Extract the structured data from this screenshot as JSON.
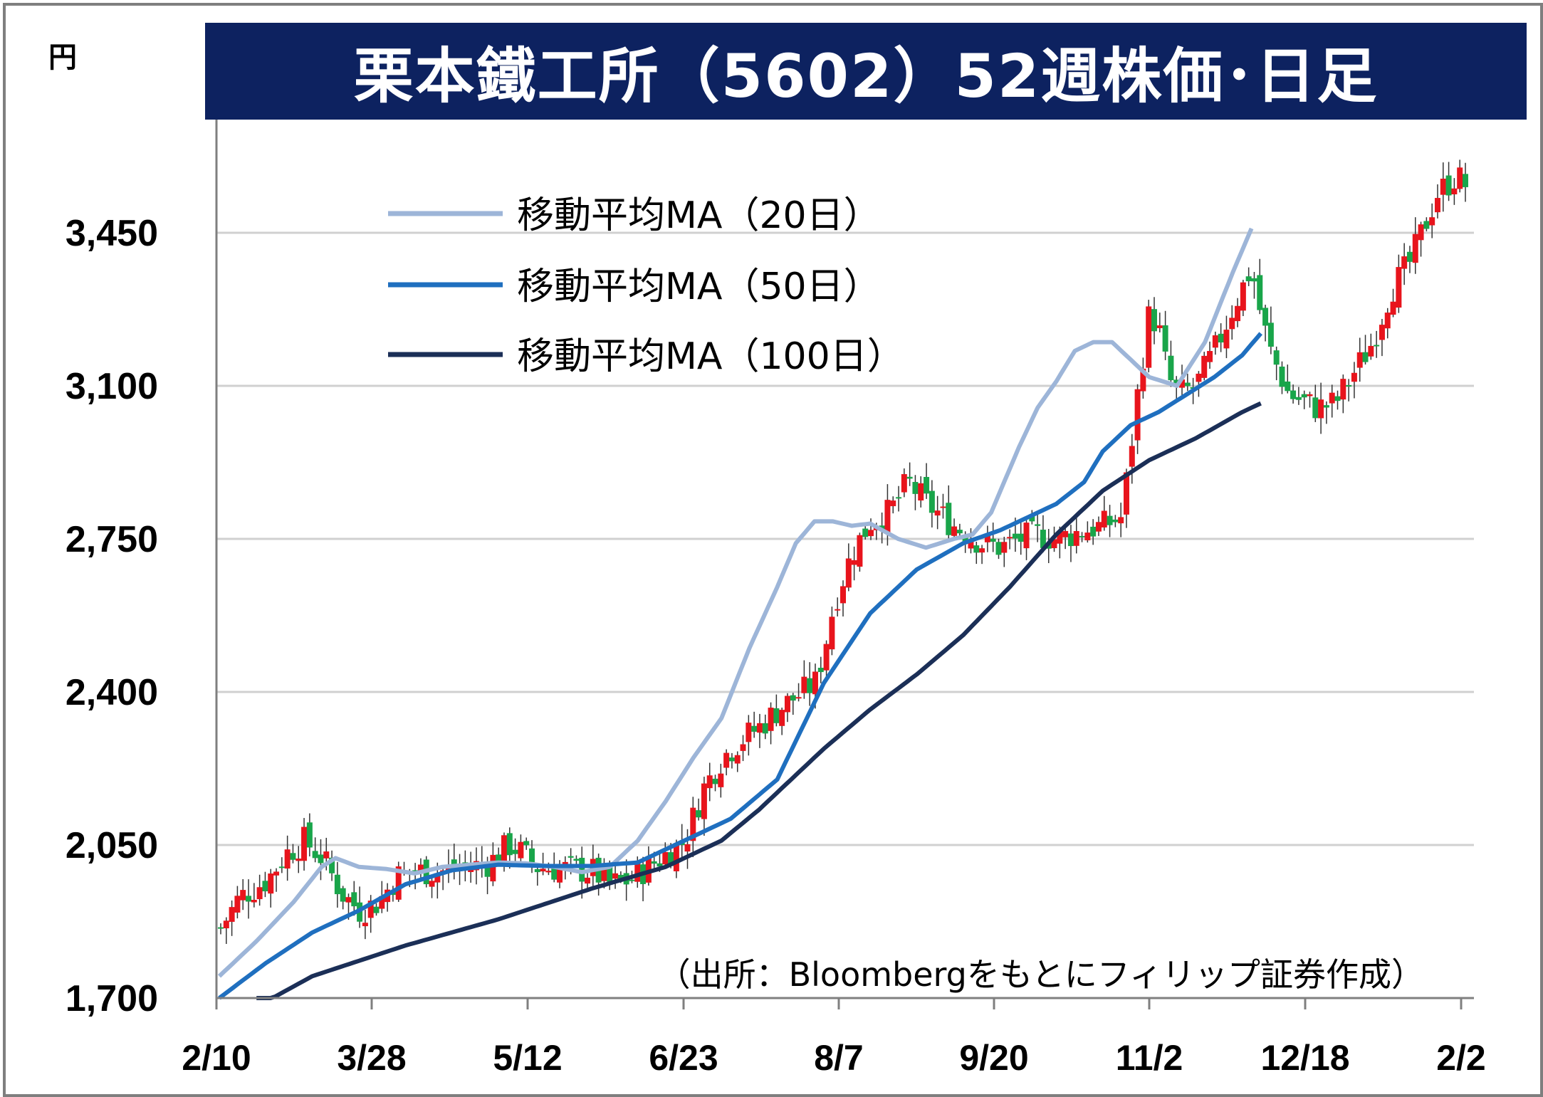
{
  "title": "栗本鐵工所（5602）52週株価･日足",
  "unit": "円",
  "source_note": "（出所：Bloombergをもとにフィリップ証券作成）",
  "colors": {
    "title_bg": "#0d2260",
    "up_candle": "#e8141c",
    "down_candle": "#19a54a",
    "ma20": "#9db5d8",
    "ma50": "#1f6fbf",
    "ma100": "#1b2f57",
    "grid": "#d0d0d0",
    "axis": "#7f7f7f"
  },
  "chart_data": {
    "type": "candlestick",
    "y_ticks": [
      "3,450",
      "3,100",
      "2,750",
      "2,400",
      "2,050",
      "1,700"
    ],
    "x_ticks": [
      "2/10",
      "3/28",
      "5/12",
      "6/23",
      "8/7",
      "9/20",
      "11/2",
      "12/18",
      "2/2"
    ],
    "ylim": [
      1700,
      3600
    ],
    "grid": true,
    "legend_position": "top-left",
    "legend": [
      "移動平均MA（20日）",
      "移動平均MA（50日）",
      "移動平均MA（100日）"
    ],
    "series": [
      {
        "name": "移動平均MA（20日）",
        "anchors": [
          [
            0,
            1750
          ],
          [
            8,
            1830
          ],
          [
            16,
            1920
          ],
          [
            22,
            2000
          ],
          [
            25,
            2020
          ],
          [
            30,
            2000
          ],
          [
            36,
            1995
          ],
          [
            42,
            1985
          ],
          [
            48,
            2000
          ],
          [
            54,
            2005
          ],
          [
            60,
            2010
          ],
          [
            66,
            2008
          ],
          [
            72,
            2000
          ],
          [
            78,
            1988
          ],
          [
            84,
            2000
          ],
          [
            90,
            2060
          ],
          [
            96,
            2150
          ],
          [
            102,
            2250
          ],
          [
            108,
            2340
          ],
          [
            114,
            2500
          ],
          [
            120,
            2640
          ],
          [
            124,
            2740
          ],
          [
            128,
            2790
          ],
          [
            132,
            2790
          ],
          [
            136,
            2780
          ],
          [
            140,
            2785
          ],
          [
            146,
            2750
          ],
          [
            152,
            2730
          ],
          [
            158,
            2750
          ],
          [
            162,
            2760
          ],
          [
            166,
            2810
          ],
          [
            172,
            2960
          ],
          [
            176,
            3050
          ],
          [
            180,
            3110
          ],
          [
            184,
            3180
          ],
          [
            188,
            3200
          ],
          [
            192,
            3200
          ],
          [
            196,
            3160
          ],
          [
            200,
            3120
          ],
          [
            206,
            3100
          ],
          [
            212,
            3200
          ],
          [
            218,
            3360
          ],
          [
            222,
            3460
          ]
        ]
      },
      {
        "name": "移動平均MA（50日）",
        "anchors": [
          [
            0,
            1700
          ],
          [
            10,
            1780
          ],
          [
            20,
            1850
          ],
          [
            30,
            1900
          ],
          [
            40,
            1960
          ],
          [
            50,
            1992
          ],
          [
            60,
            2005
          ],
          [
            70,
            2002
          ],
          [
            80,
            2002
          ],
          [
            90,
            2010
          ],
          [
            100,
            2060
          ],
          [
            110,
            2110
          ],
          [
            120,
            2200
          ],
          [
            130,
            2420
          ],
          [
            140,
            2580
          ],
          [
            150,
            2680
          ],
          [
            160,
            2740
          ],
          [
            168,
            2770
          ],
          [
            174,
            2800
          ],
          [
            180,
            2830
          ],
          [
            186,
            2880
          ],
          [
            190,
            2950
          ],
          [
            196,
            3010
          ],
          [
            202,
            3040
          ],
          [
            208,
            3080
          ],
          [
            214,
            3120
          ],
          [
            220,
            3170
          ],
          [
            224,
            3220
          ]
        ]
      },
      {
        "name": "移動平均MA（100日）",
        "anchors": [
          [
            8,
            1680
          ],
          [
            20,
            1750
          ],
          [
            40,
            1820
          ],
          [
            60,
            1880
          ],
          [
            80,
            1950
          ],
          [
            96,
            2000
          ],
          [
            108,
            2060
          ],
          [
            116,
            2130
          ],
          [
            130,
            2270
          ],
          [
            140,
            2360
          ],
          [
            150,
            2440
          ],
          [
            160,
            2530
          ],
          [
            170,
            2640
          ],
          [
            180,
            2760
          ],
          [
            190,
            2860
          ],
          [
            200,
            2930
          ],
          [
            210,
            2980
          ],
          [
            220,
            3040
          ],
          [
            224,
            3060
          ]
        ]
      }
    ],
    "candles_count": 225,
    "wave_anchors": [
      [
        0,
        1860
      ],
      [
        4,
        1930
      ],
      [
        10,
        1970
      ],
      [
        14,
        2030
      ],
      [
        18,
        2060
      ],
      [
        22,
        2020
      ],
      [
        26,
        1940
      ],
      [
        30,
        1900
      ],
      [
        34,
        1920
      ],
      [
        38,
        1980
      ],
      [
        42,
        1990
      ],
      [
        48,
        1990
      ],
      [
        54,
        2000
      ],
      [
        58,
        2010
      ],
      [
        62,
        2050
      ],
      [
        64,
        2040
      ],
      [
        68,
        2000
      ],
      [
        74,
        1995
      ],
      [
        80,
        1990
      ],
      [
        84,
        1960
      ],
      [
        88,
        1970
      ],
      [
        92,
        2000
      ],
      [
        96,
        2030
      ],
      [
        100,
        2060
      ],
      [
        104,
        2180
      ],
      [
        108,
        2250
      ],
      [
        112,
        2290
      ],
      [
        116,
        2320
      ],
      [
        120,
        2360
      ],
      [
        124,
        2390
      ],
      [
        128,
        2420
      ],
      [
        130,
        2500
      ],
      [
        132,
        2600
      ],
      [
        136,
        2720
      ],
      [
        140,
        2790
      ],
      [
        144,
        2810
      ],
      [
        148,
        2880
      ],
      [
        152,
        2830
      ],
      [
        158,
        2780
      ],
      [
        164,
        2740
      ],
      [
        168,
        2730
      ],
      [
        172,
        2750
      ],
      [
        176,
        2760
      ],
      [
        180,
        2750
      ],
      [
        186,
        2770
      ],
      [
        190,
        2780
      ],
      [
        194,
        2800
      ],
      [
        196,
        2960
      ],
      [
        198,
        3130
      ],
      [
        200,
        3270
      ],
      [
        202,
        3230
      ],
      [
        204,
        3120
      ],
      [
        206,
        3080
      ],
      [
        210,
        3100
      ],
      [
        214,
        3180
      ],
      [
        218,
        3280
      ],
      [
        222,
        3370
      ],
      [
        224,
        3260
      ],
      [
        226,
        3180
      ],
      [
        230,
        3080
      ],
      [
        236,
        3050
      ],
      [
        240,
        3060
      ],
      [
        244,
        3130
      ],
      [
        248,
        3200
      ],
      [
        252,
        3320
      ],
      [
        256,
        3380
      ],
      [
        262,
        3540
      ],
      [
        266,
        3580
      ],
      [
        268,
        3560
      ]
    ]
  }
}
